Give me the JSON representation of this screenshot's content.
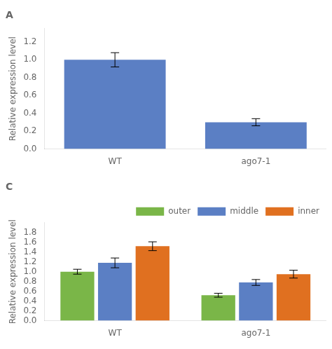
{
  "chart_data": [
    {
      "type": "bar",
      "title": "A",
      "categories": [
        "WT",
        "ago7-1"
      ],
      "values": [
        1.0,
        0.3
      ],
      "errors": [
        0.08,
        0.04
      ],
      "color": "#5B7FC4",
      "ylabel": "Relative expression level",
      "ylim": [
        0,
        1.35
      ],
      "yticks": [
        {
          "value": 0.0,
          "label": "0.0"
        },
        0.2,
        0.4,
        0.6,
        0.8,
        {
          "value": 1.0,
          "label": "1.0"
        },
        1.2
      ],
      "grid": false
    },
    {
      "type": "bar",
      "title": "C",
      "categories": [
        "WT",
        "ago7-1"
      ],
      "series": [
        {
          "name": "outer",
          "color": "#7AB648",
          "values": [
            1.0,
            0.52
          ],
          "errors": [
            0.05,
            0.04
          ]
        },
        {
          "name": "middle",
          "color": "#5B7FC4",
          "values": [
            1.18,
            0.78
          ],
          "errors": [
            0.1,
            0.06
          ]
        },
        {
          "name": "inner",
          "color": "#E07020",
          "values": [
            1.52,
            0.95
          ],
          "errors": [
            0.09,
            0.08
          ]
        }
      ],
      "ylabel": "Relative expression level",
      "ylim": [
        0,
        2.0
      ],
      "yticks": [
        {
          "value": 0.0,
          "label": "0.0"
        },
        0.2,
        0.4,
        0.6,
        0.8,
        {
          "value": 1.0,
          "label": "1.0"
        },
        1.2,
        1.4,
        1.6,
        1.8
      ],
      "legend": "upper right",
      "grid": false
    }
  ]
}
